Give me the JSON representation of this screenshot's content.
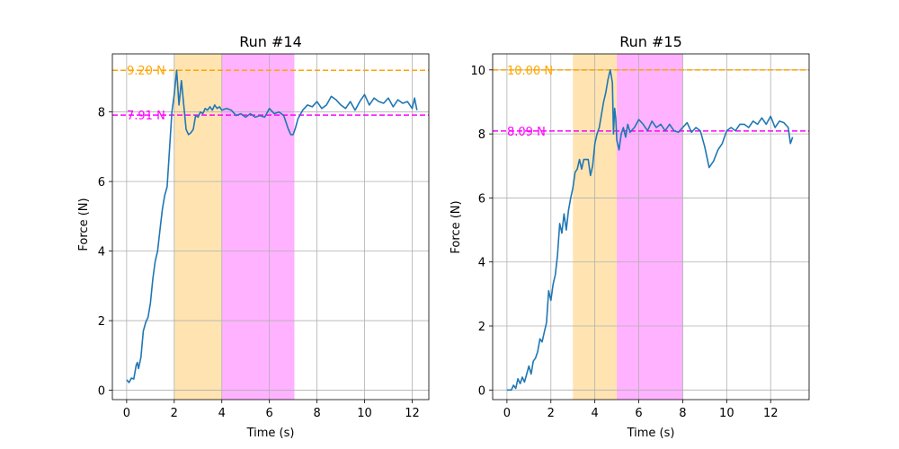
{
  "chart_data": [
    {
      "type": "line",
      "title": "Run #14",
      "xlabel": "Time (s)",
      "ylabel": "Force (N)",
      "xlim": [
        -0.6,
        12.7
      ],
      "ylim": [
        -0.27,
        9.67
      ],
      "xticks": [
        0,
        2,
        4,
        6,
        8,
        10,
        12
      ],
      "yticks": [
        0,
        2,
        4,
        6,
        8
      ],
      "grid": true,
      "line_color": "#1f77b4",
      "spans": [
        {
          "x0": 2.0,
          "x1": 4.0,
          "color": "#ffa500",
          "opacity": 0.3
        },
        {
          "x0": 4.0,
          "x1": 7.05,
          "color": "#ff00ff",
          "opacity": 0.3
        }
      ],
      "reference_lines": [
        {
          "y": 9.2,
          "label": "9.20 N",
          "color": "#ffa500"
        },
        {
          "y": 7.91,
          "label": "7.91 N",
          "color": "#ff00ff"
        }
      ],
      "series": [
        {
          "x": [
            0.0,
            0.1,
            0.2,
            0.3,
            0.4,
            0.45,
            0.5,
            0.6,
            0.7,
            0.8,
            0.9,
            1.0,
            1.1,
            1.2,
            1.3,
            1.4,
            1.5,
            1.6,
            1.7,
            1.8,
            1.9,
            2.0,
            2.1,
            2.2,
            2.3,
            2.4,
            2.5,
            2.6,
            2.7,
            2.8,
            2.9,
            3.0,
            3.1,
            3.2,
            3.3,
            3.4,
            3.5,
            3.6,
            3.7,
            3.8,
            3.9,
            4.0,
            4.2,
            4.4,
            4.6,
            4.8,
            5.0,
            5.2,
            5.4,
            5.6,
            5.8,
            6.0,
            6.2,
            6.4,
            6.6,
            6.8,
            6.9,
            7.0,
            7.1,
            7.2,
            7.4,
            7.6,
            7.8,
            8.0,
            8.2,
            8.4,
            8.6,
            8.8,
            9.0,
            9.2,
            9.4,
            9.6,
            9.8,
            10.0,
            10.2,
            10.4,
            10.6,
            10.8,
            11.0,
            11.2,
            11.4,
            11.6,
            11.8,
            12.0,
            12.1,
            12.2
          ],
          "y": [
            0.3,
            0.22,
            0.35,
            0.32,
            0.72,
            0.8,
            0.62,
            0.95,
            1.7,
            1.95,
            2.1,
            2.5,
            3.2,
            3.7,
            4.0,
            4.6,
            5.2,
            5.6,
            5.85,
            6.9,
            8.0,
            8.5,
            9.2,
            8.2,
            8.9,
            8.2,
            7.5,
            7.35,
            7.4,
            7.5,
            7.9,
            7.85,
            8.0,
            7.95,
            8.1,
            8.05,
            8.15,
            8.05,
            8.2,
            8.1,
            8.15,
            8.05,
            8.1,
            8.05,
            7.9,
            7.95,
            7.85,
            7.95,
            7.85,
            7.9,
            7.85,
            8.1,
            7.95,
            8.0,
            7.9,
            7.5,
            7.35,
            7.35,
            7.55,
            7.8,
            8.05,
            8.2,
            8.15,
            8.3,
            8.1,
            8.2,
            8.45,
            8.35,
            8.2,
            8.1,
            8.3,
            8.05,
            8.3,
            8.5,
            8.2,
            8.4,
            8.3,
            8.25,
            8.4,
            8.15,
            8.35,
            8.25,
            8.3,
            8.1,
            8.4,
            8.05
          ]
        }
      ]
    },
    {
      "type": "line",
      "title": "Run #15",
      "xlabel": "Time (s)",
      "ylabel": "Force (N)",
      "xlim": [
        -0.65,
        13.75
      ],
      "ylim": [
        -0.3,
        10.5
      ],
      "xticks": [
        0,
        2,
        4,
        6,
        8,
        10,
        12
      ],
      "yticks": [
        0,
        2,
        4,
        6,
        8,
        10
      ],
      "grid": true,
      "line_color": "#1f77b4",
      "spans": [
        {
          "x0": 3.0,
          "x1": 5.0,
          "color": "#ffa500",
          "opacity": 0.3
        },
        {
          "x0": 5.0,
          "x1": 8.0,
          "color": "#ff00ff",
          "opacity": 0.3
        }
      ],
      "reference_lines": [
        {
          "y": 10.0,
          "label": "10.00 N",
          "color": "#ffa500"
        },
        {
          "y": 8.09,
          "label": "8.09 N",
          "color": "#ff00ff"
        }
      ],
      "series": [
        {
          "x": [
            0.0,
            0.2,
            0.3,
            0.4,
            0.5,
            0.6,
            0.7,
            0.8,
            0.9,
            1.0,
            1.1,
            1.2,
            1.3,
            1.4,
            1.5,
            1.6,
            1.7,
            1.8,
            1.9,
            2.0,
            2.1,
            2.2,
            2.3,
            2.4,
            2.5,
            2.6,
            2.7,
            2.8,
            2.9,
            3.0,
            3.1,
            3.2,
            3.3,
            3.4,
            3.5,
            3.6,
            3.7,
            3.8,
            3.9,
            4.0,
            4.1,
            4.2,
            4.3,
            4.4,
            4.5,
            4.6,
            4.7,
            4.8,
            4.85,
            4.9,
            4.95,
            5.0,
            5.1,
            5.2,
            5.3,
            5.4,
            5.5,
            5.6,
            5.8,
            6.0,
            6.2,
            6.4,
            6.6,
            6.8,
            7.0,
            7.2,
            7.4,
            7.6,
            7.8,
            8.0,
            8.2,
            8.4,
            8.6,
            8.8,
            9.0,
            9.2,
            9.4,
            9.6,
            9.8,
            10.0,
            10.2,
            10.4,
            10.6,
            10.8,
            11.0,
            11.2,
            11.4,
            11.6,
            11.8,
            12.0,
            12.2,
            12.4,
            12.6,
            12.8,
            12.9,
            13.0
          ],
          "y": [
            0.0,
            0.0,
            0.15,
            0.05,
            0.35,
            0.2,
            0.4,
            0.25,
            0.5,
            0.75,
            0.5,
            0.9,
            1.0,
            1.2,
            1.6,
            1.5,
            1.8,
            2.1,
            3.1,
            2.8,
            3.3,
            3.6,
            4.2,
            5.2,
            4.9,
            5.5,
            5.0,
            5.6,
            6.0,
            6.3,
            6.8,
            6.9,
            7.2,
            6.9,
            7.2,
            7.2,
            7.2,
            6.7,
            7.0,
            7.7,
            8.0,
            8.2,
            8.6,
            9.0,
            9.3,
            9.7,
            10.0,
            9.6,
            8.0,
            8.8,
            8.5,
            7.8,
            7.5,
            8.0,
            8.2,
            7.9,
            8.3,
            8.05,
            8.2,
            8.45,
            8.3,
            8.1,
            8.4,
            8.2,
            8.3,
            8.1,
            8.3,
            8.1,
            8.05,
            8.2,
            8.35,
            8.05,
            8.2,
            8.1,
            7.6,
            6.95,
            7.15,
            7.5,
            7.7,
            8.1,
            8.2,
            8.1,
            8.3,
            8.3,
            8.2,
            8.4,
            8.3,
            8.5,
            8.3,
            8.55,
            8.2,
            8.4,
            8.35,
            8.2,
            7.7,
            7.9
          ]
        }
      ]
    }
  ]
}
